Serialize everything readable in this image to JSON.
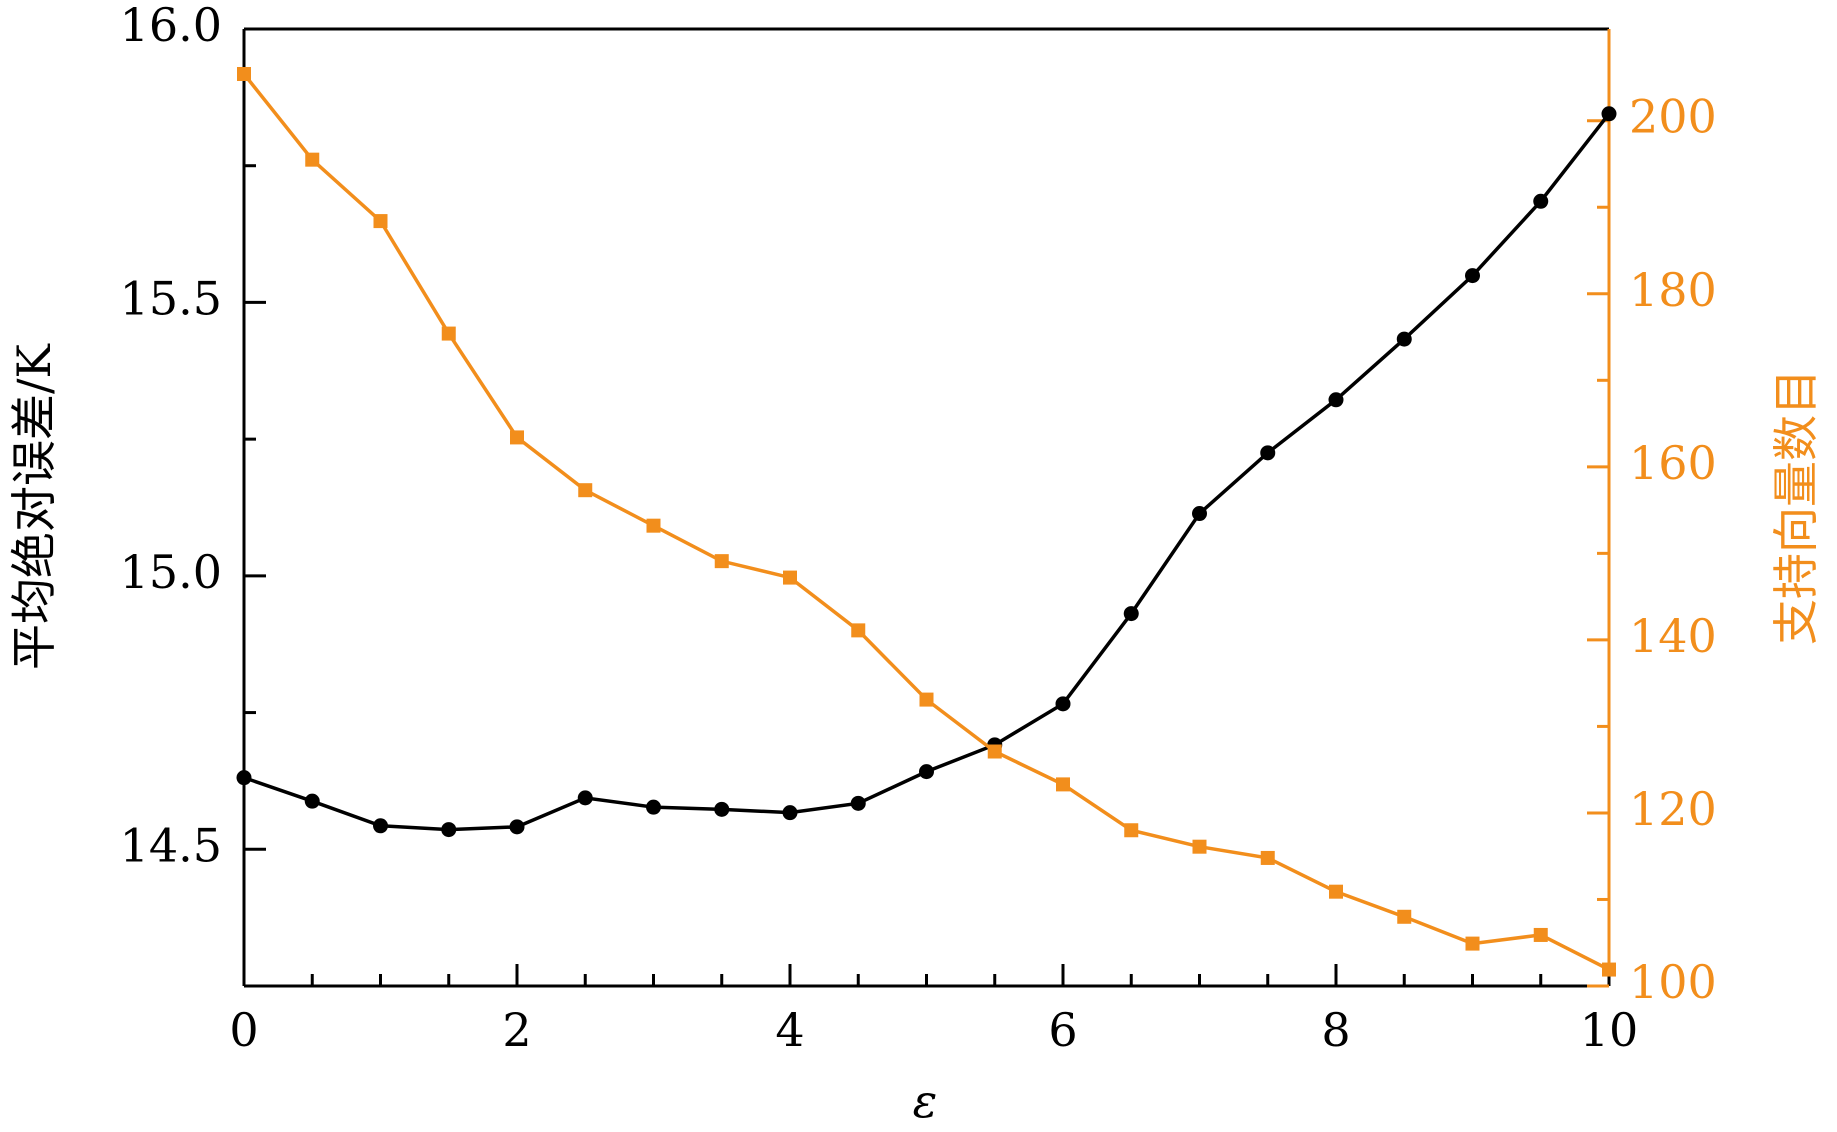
{
  "chart_data": {
    "type": "line",
    "x_label": "ε",
    "y_label": "平均绝对误差/K",
    "y2_label": "支持向量数目",
    "x": [
      0,
      0.5,
      1,
      1.5,
      2,
      2.5,
      3,
      3.5,
      4,
      4.5,
      5,
      5.5,
      6,
      6.5,
      7,
      7.5,
      8,
      8.5,
      9,
      9.5,
      10
    ],
    "series": [
      {
        "color": "#000000",
        "marker": "circle",
        "values": [
          14.631,
          14.588,
          14.543,
          14.536,
          14.541,
          14.594,
          14.577,
          14.573,
          14.567,
          14.584,
          14.642,
          14.691,
          14.766,
          14.931,
          15.114,
          15.225,
          15.322,
          15.433,
          15.549,
          15.685,
          15.845
        ]
      },
      {
        "color": "#f28e1c",
        "marker": "square",
        "axis": "y2",
        "values": [
          205.4,
          195.5,
          188.4,
          175.4,
          163.4,
          157.3,
          153.2,
          149.1,
          147.2,
          141.1,
          133.1,
          127.1,
          123.3,
          118.0,
          116.1,
          114.8,
          110.9,
          108.0,
          104.9,
          105.9,
          101.9
        ]
      }
    ],
    "xlim": [
      0,
      10
    ],
    "xticks": [
      0,
      2,
      4,
      6,
      8,
      10
    ],
    "xminorticks": [
      0.5,
      1,
      1.5,
      2.5,
      3,
      3.5,
      4.5,
      5,
      5.5,
      6.5,
      7,
      7.5,
      8.5,
      9,
      9.5
    ],
    "ylim": [
      14.25,
      16.0
    ],
    "yticks": [
      {
        "value": 14.5,
        "label": "14.5"
      },
      {
        "value": 15.0,
        "label": "15.0"
      },
      {
        "value": 15.5,
        "label": "15.5"
      },
      {
        "value": 16.0,
        "label": "16.0"
      }
    ],
    "yminorticks": [
      14.75,
      15.25,
      15.75
    ],
    "y2lim": [
      100,
      210.6
    ],
    "y2ticks": [
      100,
      120,
      140,
      160,
      180,
      200
    ],
    "y2minorticks": [
      110,
      130,
      150,
      170,
      190
    ],
    "y2color": "#f28e1c"
  }
}
